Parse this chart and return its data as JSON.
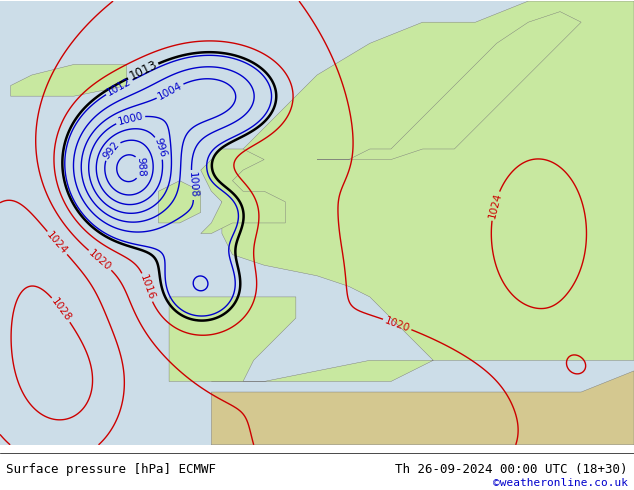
{
  "title_left": "Surface pressure [hPa] ECMWF",
  "title_right": "Th 26-09-2024 00:00 UTC (18+30)",
  "copyright": "©weatheronline.co.uk",
  "bg_ocean": "#ccdde8",
  "bg_land": "#c8e8a0",
  "bg_africa": "#d4c890",
  "contour_blue": "#0000cc",
  "contour_red": "#cc0000",
  "contour_black": "#000000",
  "label_fontsize": 7.5,
  "label_fontsize_black": 8.5,
  "footer_fontsize": 9,
  "copyright_fontsize": 8,
  "figsize": [
    6.34,
    4.9
  ],
  "dpi": 100
}
